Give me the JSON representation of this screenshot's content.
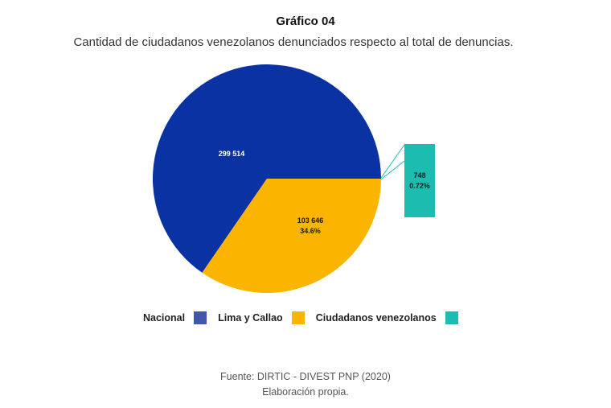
{
  "header": {
    "title": "Gráfico 04",
    "subtitle": "Cantidad de ciudadanos venezolanos denunciados respecto al total de denuncias."
  },
  "chart_data": {
    "type": "pie",
    "slices": [
      {
        "name": "Nacional",
        "value": 299514,
        "label_value": "299 514",
        "label_pct": "",
        "color": "#0a32a3"
      },
      {
        "name": "Lima y Callao",
        "value": 103646,
        "label_value": "103 646",
        "label_pct": "34.6%",
        "color": "#fbb400"
      },
      {
        "name": "Ciudadanos venezolanos",
        "value": 748,
        "label_value": "748",
        "label_pct": "0.72%",
        "color": "#1dbcb0"
      }
    ],
    "legend": {
      "placement": "bottom",
      "items": [
        {
          "label": "Nacional",
          "color": "#3f58a8"
        },
        {
          "label": "Lima y Callao",
          "color": "#fbb400"
        },
        {
          "label": "Ciudadanos venezolanos",
          "color": "#1dbcb0"
        }
      ]
    }
  },
  "footer": {
    "source": "Fuente: DIRTIC - DIVEST PNP (2020)",
    "note": "Elaboración propia."
  }
}
